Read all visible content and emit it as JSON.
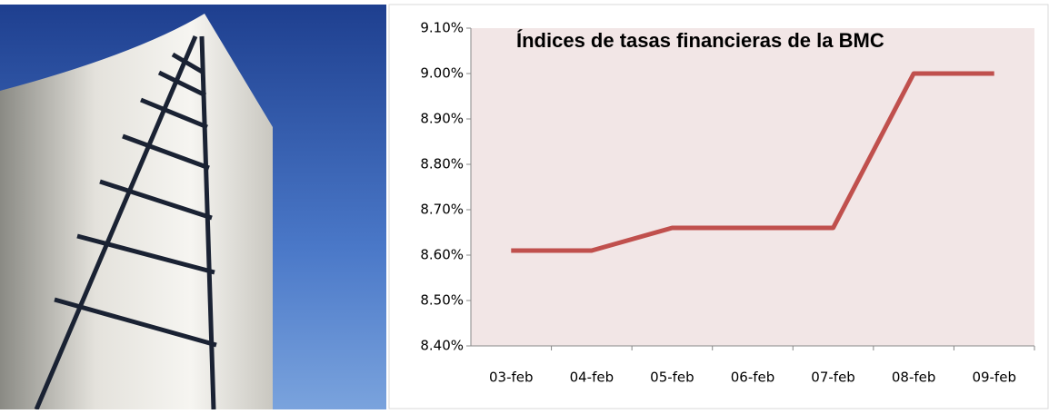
{
  "chart_data": {
    "type": "line",
    "title": "Índices de tasas financieras de la BMC",
    "categories": [
      "03-feb",
      "04-feb",
      "05-feb",
      "06-feb",
      "07-feb",
      "08-feb",
      "09-feb"
    ],
    "values": [
      8.61,
      8.61,
      8.66,
      8.66,
      8.66,
      9.0,
      9.0
    ],
    "color": "#c0504d",
    "ylim": [
      8.4,
      9.1
    ],
    "yticks": [
      {
        "value": 8.4,
        "label": "8.40%"
      },
      {
        "value": 8.5,
        "label": "8.50%"
      },
      {
        "value": 8.6,
        "label": "8.60%"
      },
      {
        "value": 8.7,
        "label": "8.70%"
      },
      {
        "value": 8.8,
        "label": "8.80%"
      },
      {
        "value": 8.9,
        "label": "8.90%"
      },
      {
        "value": 9.0,
        "label": "9.00%"
      },
      {
        "value": 9.1,
        "label": "9.10%"
      }
    ],
    "grid": false
  }
}
